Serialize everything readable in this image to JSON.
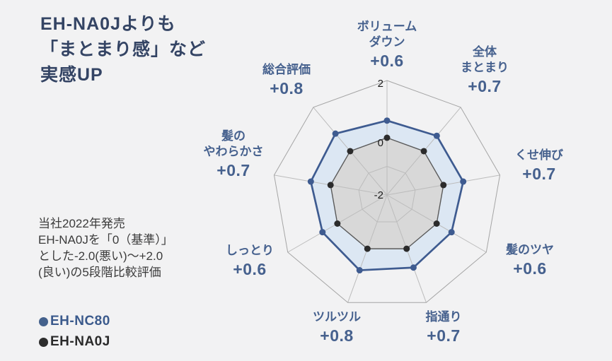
{
  "title": {
    "lines": [
      "EH-NA0Jよりも",
      "「まとまり感」など",
      "実感UP"
    ]
  },
  "note": {
    "lines": [
      "当社2022年発売",
      "EH-NA0Jを「0（基準）」",
      "とした-2.0(悪い)～+2.0",
      "(良い)の5段階比較評価"
    ]
  },
  "legend": {
    "items": [
      {
        "label": "EH-NC80",
        "color": "#44618c",
        "text_color": "#3b5a8c"
      },
      {
        "label": "EH-NA0J",
        "color": "#2d2d2d",
        "text_color": "#2b2b2b"
      }
    ]
  },
  "chart_data": {
    "type": "radar",
    "categories": [
      "ボリュームダウン",
      "全体まとまり",
      "くせ伸び",
      "髪のツヤ",
      "指通り",
      "ツルツル",
      "しっとり",
      "髪のやわらかさ",
      "総合評価"
    ],
    "axis_label_lines": [
      [
        "ボリューム",
        "ダウン"
      ],
      [
        "全体",
        "まとまり"
      ],
      [
        "くせ伸び"
      ],
      [
        "髪のツヤ"
      ],
      [
        "指通り"
      ],
      [
        "ツルツル"
      ],
      [
        "しっとり"
      ],
      [
        "髪の",
        "やわらかさ"
      ],
      [
        "総合評価"
      ]
    ],
    "value_labels": [
      "+0.6",
      "+0.7",
      "+0.7",
      "+0.6",
      "+0.7",
      "+0.8",
      "+0.6",
      "+0.7",
      "+0.8"
    ],
    "series": [
      {
        "name": "EH-NC80",
        "values": [
          0.6,
          0.7,
          0.7,
          0.6,
          0.7,
          0.8,
          0.6,
          0.7,
          0.8
        ],
        "line_color": "#3e5b90",
        "fill_color": "#dce7f3",
        "dot_color": "#3e5b90",
        "line_width": 2.7
      },
      {
        "name": "EH-NA0J",
        "values": [
          0,
          0,
          0,
          0,
          0,
          0,
          0,
          0,
          0
        ],
        "line_color": "#5a5a5a",
        "fill_color": "#d8d8d8",
        "dot_color": "#2b2b2b",
        "line_width": 1.4
      }
    ],
    "axis_range": {
      "min": -2,
      "max": 2
    },
    "tick_labels": [
      {
        "text": "2",
        "value": 2
      },
      {
        "text": "0",
        "value": 0
      },
      {
        "text": "-2",
        "value": -2
      }
    ],
    "grid": {
      "rings_at": [
        2,
        -1
      ],
      "spokes": true,
      "legend_position": "bottom-left"
    },
    "colors": {
      "grid": "#bcbcbc",
      "outer_ring": "#a5a5a5",
      "tick_text": "#1c1c1c",
      "background": "#f2f2f3"
    }
  }
}
